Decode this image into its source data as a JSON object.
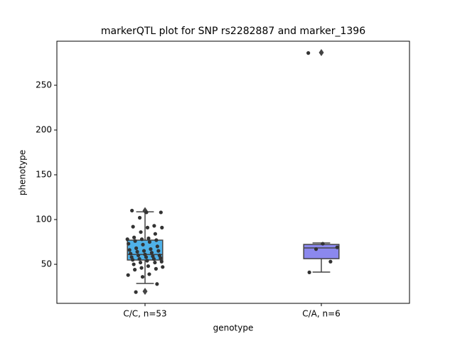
{
  "chart_data": {
    "type": "box",
    "title": "markerQTL plot for SNP rs2282887 and marker_1396",
    "xlabel": "genotype",
    "ylabel": "phenotype",
    "categories": [
      "C/C, n=53",
      "C/A, n=6"
    ],
    "boxes": [
      {
        "whislo": 28.6,
        "q1": 54.8,
        "med": 61,
        "q3": 77,
        "whishi": 108.7,
        "fliers": [
          110,
          19.8
        ],
        "color": "#4fb1e8"
      },
      {
        "whislo": 41.3,
        "q1": 56.3,
        "med": 68.3,
        "q3": 72.2,
        "whishi": 73.8,
        "fliers": [
          286.5
        ],
        "color": "#8b88ee"
      }
    ],
    "points": [
      [
        110,
        108,
        108,
        102,
        93,
        92,
        91,
        91,
        86,
        84,
        80,
        79,
        78,
        78,
        77,
        76,
        75,
        73,
        72,
        70,
        68,
        67,
        66,
        65,
        65,
        64,
        63,
        62,
        61,
        60,
        60,
        59,
        58,
        58,
        57,
        56,
        56,
        55,
        54,
        53,
        52,
        52,
        50,
        48,
        47,
        46,
        45,
        44,
        39,
        38,
        36,
        28,
        19
      ],
      [
        286,
        73,
        69,
        67,
        53,
        41
      ]
    ],
    "point_color": "#333333",
    "ylim": [
      6.4,
      299.2
    ],
    "yticks": [
      50,
      100,
      150,
      200,
      250
    ]
  }
}
